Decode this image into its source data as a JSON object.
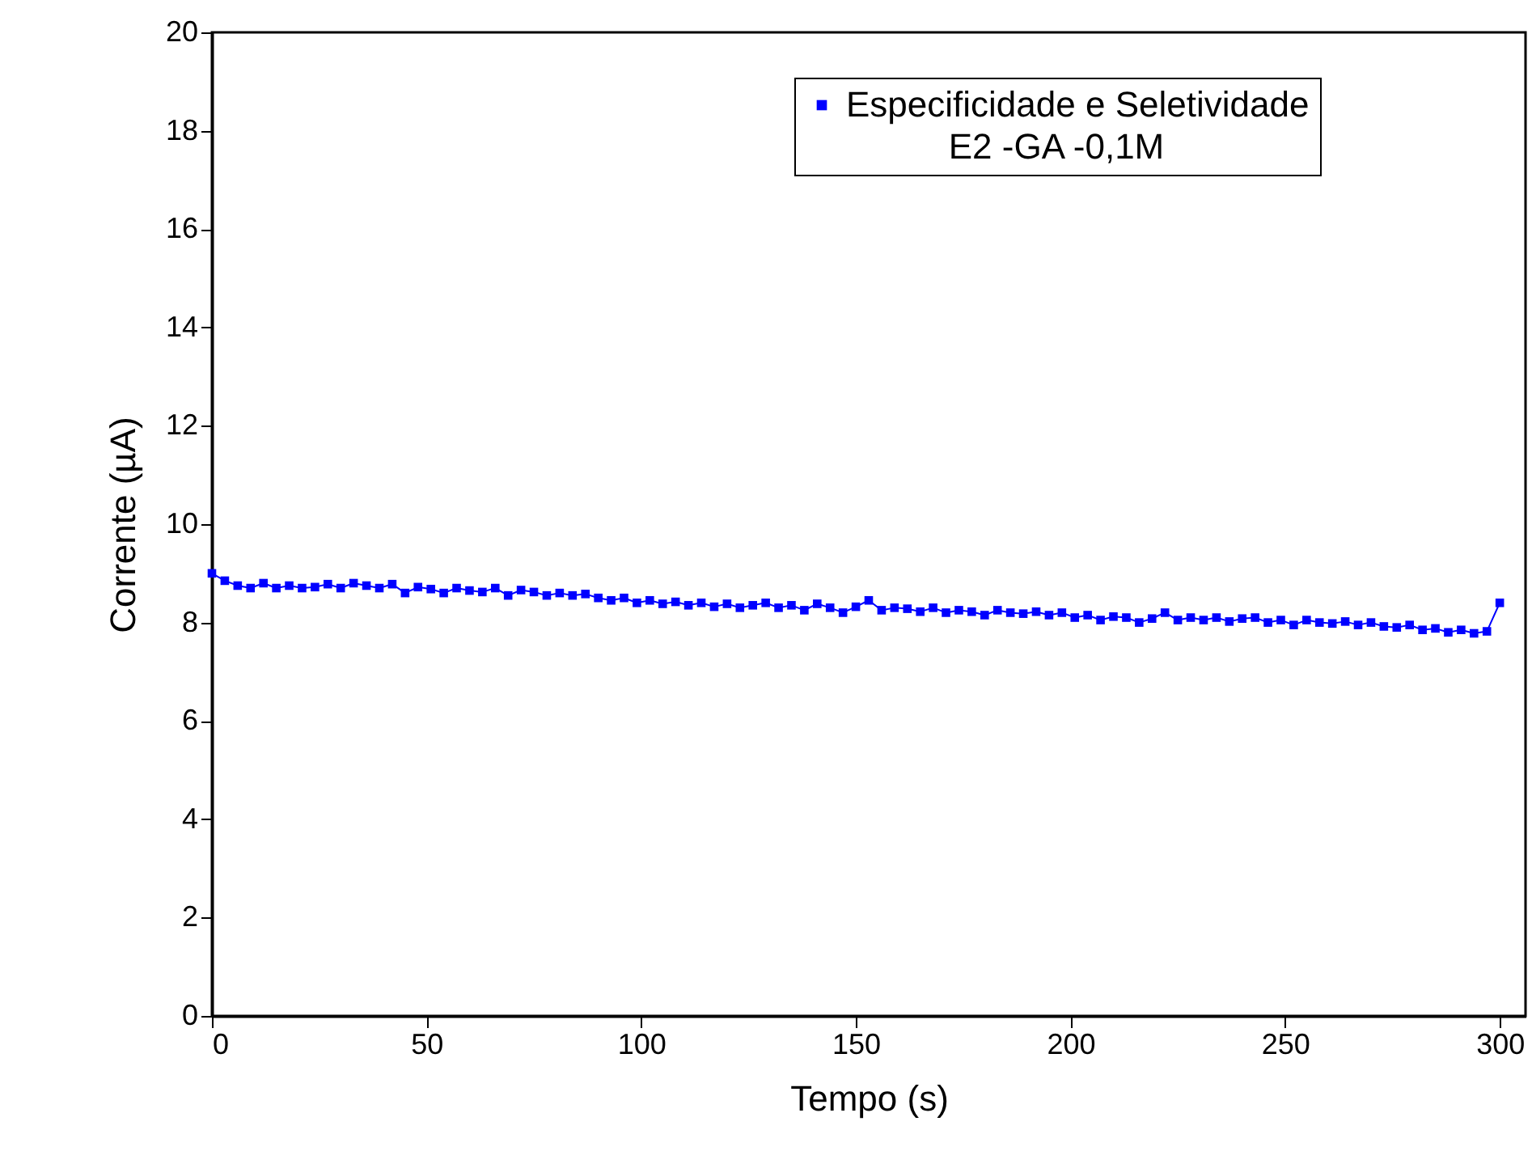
{
  "chart_data": {
    "type": "line",
    "xlabel": "Tempo (s)",
    "ylabel": "Corrente (µA)",
    "legend_title": "E2 -GA -0,1M",
    "xlim": [
      0,
      306
    ],
    "ylim": [
      0,
      20
    ],
    "xticks": [
      0,
      50,
      100,
      150,
      200,
      250,
      300
    ],
    "yticks": [
      0,
      2,
      4,
      6,
      8,
      10,
      12,
      14,
      16,
      18,
      20
    ],
    "grid": false,
    "legend": "top right",
    "marker": "square",
    "line_style": "solid",
    "x": [
      0,
      3,
      6,
      9,
      12,
      15,
      18,
      21,
      24,
      27,
      30,
      33,
      36,
      39,
      42,
      45,
      48,
      51,
      54,
      57,
      60,
      63,
      66,
      69,
      72,
      75,
      78,
      81,
      84,
      87,
      90,
      93,
      96,
      99,
      102,
      105,
      108,
      111,
      114,
      117,
      120,
      123,
      126,
      129,
      132,
      135,
      138,
      141,
      144,
      147,
      150,
      153,
      156,
      159,
      162,
      165,
      168,
      171,
      174,
      177,
      180,
      183,
      186,
      189,
      192,
      195,
      198,
      201,
      204,
      207,
      210,
      213,
      216,
      219,
      222,
      225,
      228,
      231,
      234,
      237,
      240,
      243,
      246,
      249,
      252,
      255,
      258,
      261,
      264,
      267,
      270,
      273,
      276,
      279,
      282,
      285,
      288,
      291,
      294,
      297,
      300
    ],
    "series": [
      {
        "name": "Especificidade e Seletividade",
        "color": "#0000ff",
        "values": [
          9.0,
          8.85,
          8.75,
          8.7,
          8.8,
          8.7,
          8.75,
          8.7,
          8.72,
          8.78,
          8.7,
          8.8,
          8.75,
          8.7,
          8.78,
          8.6,
          8.72,
          8.68,
          8.6,
          8.7,
          8.65,
          8.62,
          8.7,
          8.55,
          8.66,
          8.62,
          8.55,
          8.6,
          8.55,
          8.58,
          8.5,
          8.45,
          8.5,
          8.4,
          8.45,
          8.38,
          8.42,
          8.35,
          8.4,
          8.32,
          8.38,
          8.3,
          8.35,
          8.4,
          8.3,
          8.35,
          8.25,
          8.38,
          8.3,
          8.2,
          8.32,
          8.45,
          8.25,
          8.3,
          8.28,
          8.22,
          8.3,
          8.2,
          8.25,
          8.22,
          8.15,
          8.25,
          8.2,
          8.18,
          8.22,
          8.15,
          8.2,
          8.1,
          8.15,
          8.05,
          8.12,
          8.1,
          8.0,
          8.08,
          8.2,
          8.05,
          8.1,
          8.05,
          8.1,
          8.02,
          8.08,
          8.1,
          8.0,
          8.05,
          7.95,
          8.05,
          8.0,
          7.98,
          8.02,
          7.95,
          8.0,
          7.92,
          7.9,
          7.95,
          7.85,
          7.88,
          7.8,
          7.85,
          7.78,
          7.82,
          8.4
        ]
      }
    ]
  }
}
